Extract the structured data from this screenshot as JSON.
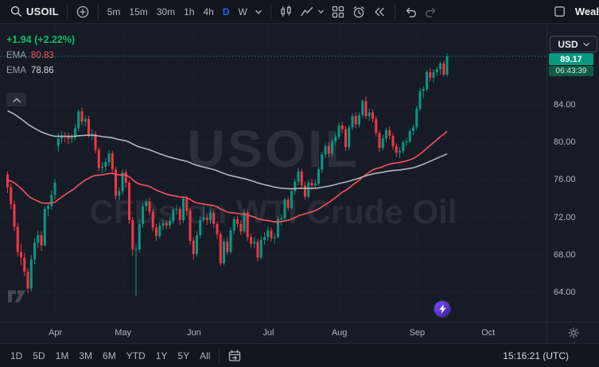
{
  "toolbar": {
    "symbol": "USOIL",
    "timeframes": [
      {
        "label": "5m",
        "active": false
      },
      {
        "label": "15m",
        "active": false
      },
      {
        "label": "30m",
        "active": false
      },
      {
        "label": "1h",
        "active": false
      },
      {
        "label": "4h",
        "active": false
      },
      {
        "label": "D",
        "active": true
      },
      {
        "label": "W",
        "active": false
      }
    ],
    "brand": "Weal"
  },
  "legend": {
    "change": "+1.94 (+2.22%)",
    "indicators": [
      {
        "label": "EMA",
        "value": "80.83",
        "color": "#f7525f"
      },
      {
        "label": "EMA",
        "value": "78.86",
        "color": "#d7dae0"
      }
    ]
  },
  "watermark": {
    "line1": "USOIL",
    "line2": "CFDs on WTI Crude Oil"
  },
  "price_axis": {
    "currency": "USD",
    "last_label": "89.17",
    "countdown": "06:43:39"
  },
  "bottom_bar": {
    "ranges": [
      "1D",
      "5D",
      "1M",
      "3M",
      "6M",
      "YTD",
      "1Y",
      "5Y",
      "All"
    ],
    "clock": "15:16:21 (UTC)"
  },
  "icons": {
    "search": "magnifier",
    "compare": "plus-circle",
    "timeframe_menu": "chevron-down",
    "chart_type": "candles",
    "indicators": "line-chart",
    "layout": "grid",
    "alert": "alarm-clock",
    "replay": "rewind",
    "undo": "arrow-undo",
    "redo": "arrow-redo",
    "fullscreen": "square",
    "collapse": "chevron-up",
    "goto_date": "calendar",
    "settings": "gear",
    "community": "lightning-circle",
    "logo": "tradingview"
  },
  "colors": {
    "background": "#161b26",
    "toolbar": "#12151e",
    "border": "#262b36",
    "up": "#089981",
    "down": "#f23645",
    "accent": "#2962ff",
    "change_text": "#0abd6e",
    "ema_fast": "#f7525f",
    "ema_slow": "#b2b5be",
    "badge_bg": "#089981",
    "countdown_bg": "#0f5b46",
    "axis_text": "#b2b5be"
  },
  "chart_data": {
    "type": "candlestick",
    "symbol": "USOIL",
    "title": "CFDs on WTI Crude Oil",
    "interval": "D",
    "last_price": 89.17,
    "change": 1.94,
    "change_pct": 2.22,
    "price_ticks": [
      84,
      80,
      76,
      72,
      68,
      64
    ],
    "y_range": [
      62.5,
      92.5
    ],
    "months": [
      {
        "label": "Apr",
        "b": 15
      },
      {
        "label": "May",
        "b": 35
      },
      {
        "label": "Jun",
        "b": 56
      },
      {
        "label": "Jul",
        "b": 78
      },
      {
        "label": "Aug",
        "b": 99
      },
      {
        "label": "Sep",
        "b": 122
      },
      {
        "label": "Oct",
        "b": 143
      }
    ],
    "emas": [
      {
        "name": "EMA",
        "period": 50,
        "seed": 76.0,
        "value": 80.83,
        "color": "#f7525f"
      },
      {
        "name": "EMA",
        "period": 120,
        "seed": 83.5,
        "value": 78.86,
        "color": "#b2b5be"
      }
    ],
    "candles": [
      [
        76.6,
        76.9,
        74.6,
        75.2
      ],
      [
        75.2,
        75.6,
        72.9,
        73.4
      ],
      [
        73.4,
        73.8,
        70.5,
        71.0
      ],
      [
        71.0,
        71.4,
        67.8,
        68.3
      ],
      [
        68.3,
        69.2,
        66.9,
        67.7
      ],
      [
        67.7,
        68.2,
        65.7,
        66.2
      ],
      [
        66.2,
        66.6,
        63.9,
        64.4
      ],
      [
        64.4,
        68.0,
        64.1,
        67.5
      ],
      [
        67.5,
        69.8,
        67.0,
        69.3
      ],
      [
        69.3,
        70.6,
        68.7,
        70.1
      ],
      [
        70.1,
        70.5,
        68.4,
        69.0
      ],
      [
        69.0,
        73.2,
        68.9,
        72.9
      ],
      [
        72.9,
        73.6,
        72.1,
        73.2
      ],
      [
        73.2,
        74.9,
        72.8,
        74.4
      ],
      [
        74.4,
        76.1,
        73.9,
        75.7
      ],
      [
        79.6,
        81.0,
        79.0,
        80.4
      ],
      [
        80.4,
        81.2,
        79.9,
        80.7
      ],
      [
        80.7,
        81.1,
        80.0,
        80.6
      ],
      [
        80.6,
        81.0,
        79.8,
        80.4
      ],
      [
        80.4,
        80.9,
        79.9,
        80.5
      ],
      [
        80.5,
        81.9,
        80.2,
        81.5
      ],
      [
        81.5,
        83.5,
        81.2,
        83.3
      ],
      [
        83.3,
        83.7,
        81.8,
        82.2
      ],
      [
        82.2,
        82.9,
        81.7,
        82.5
      ],
      [
        82.5,
        82.8,
        80.5,
        80.8
      ],
      [
        80.8,
        81.4,
        80.3,
        80.9
      ],
      [
        80.9,
        81.2,
        78.8,
        79.2
      ],
      [
        79.2,
        79.5,
        76.9,
        77.3
      ],
      [
        77.3,
        77.9,
        76.7,
        77.4
      ],
      [
        77.4,
        78.3,
        76.9,
        77.9
      ],
      [
        77.9,
        79.2,
        77.5,
        78.8
      ],
      [
        78.8,
        79.1,
        76.7,
        77.1
      ],
      [
        77.1,
        77.4,
        73.9,
        74.3
      ],
      [
        74.3,
        75.2,
        73.8,
        74.8
      ],
      [
        74.8,
        77.1,
        74.5,
        76.8
      ],
      [
        76.8,
        77.1,
        75.2,
        75.7
      ],
      [
        75.7,
        76.0,
        71.3,
        71.7
      ],
      [
        71.7,
        72.0,
        67.9,
        68.6
      ],
      [
        68.6,
        69.1,
        63.6,
        68.6
      ],
      [
        68.6,
        71.8,
        68.2,
        71.3
      ],
      [
        71.3,
        73.5,
        70.9,
        73.2
      ],
      [
        73.2,
        74.0,
        72.7,
        73.7
      ],
      [
        73.7,
        74.1,
        72.2,
        72.6
      ],
      [
        72.6,
        72.9,
        70.5,
        70.9
      ],
      [
        70.9,
        71.3,
        69.5,
        70.0
      ],
      [
        70.0,
        71.5,
        69.7,
        71.1
      ],
      [
        71.1,
        71.8,
        70.6,
        71.4
      ],
      [
        71.4,
        71.7,
        70.7,
        71.1
      ],
      [
        71.1,
        72.0,
        70.8,
        71.6
      ],
      [
        71.6,
        73.1,
        71.3,
        72.8
      ],
      [
        72.8,
        73.3,
        72.3,
        72.9
      ],
      [
        72.9,
        73.2,
        71.2,
        71.7
      ],
      [
        71.7,
        74.2,
        71.4,
        74.0
      ],
      [
        74.0,
        74.3,
        72.2,
        72.7
      ],
      [
        72.7,
        73.0,
        69.1,
        69.5
      ],
      [
        69.5,
        69.9,
        67.5,
        68.1
      ],
      [
        68.1,
        70.5,
        67.8,
        70.1
      ],
      [
        70.1,
        72.1,
        69.8,
        71.7
      ],
      [
        71.7,
        73.3,
        71.5,
        72.0
      ],
      [
        72.0,
        72.4,
        71.2,
        71.7
      ],
      [
        71.7,
        72.9,
        71.3,
        72.5
      ],
      [
        72.5,
        72.8,
        70.9,
        71.3
      ],
      [
        71.3,
        71.6,
        69.7,
        70.2
      ],
      [
        70.2,
        70.5,
        66.8,
        67.1
      ],
      [
        67.1,
        69.8,
        66.9,
        69.4
      ],
      [
        69.4,
        69.9,
        68.0,
        68.3
      ],
      [
        68.3,
        70.9,
        68.1,
        70.6
      ],
      [
        70.6,
        72.1,
        70.2,
        71.8
      ],
      [
        71.8,
        72.2,
        70.9,
        71.3
      ],
      [
        71.3,
        71.7,
        70.1,
        70.5
      ],
      [
        70.5,
        72.9,
        70.3,
        72.5
      ],
      [
        72.5,
        72.8,
        69.5,
        69.9
      ],
      [
        69.9,
        70.3,
        68.8,
        69.2
      ],
      [
        69.2,
        69.9,
        68.7,
        69.4
      ],
      [
        69.4,
        69.7,
        67.3,
        67.7
      ],
      [
        67.7,
        70.0,
        67.5,
        69.6
      ],
      [
        69.6,
        70.4,
        69.1,
        69.9
      ],
      [
        69.9,
        71.0,
        69.5,
        70.6
      ],
      [
        70.6,
        70.9,
        69.4,
        69.8
      ],
      [
        69.8,
        70.3,
        69.2,
        69.9
      ],
      [
        69.9,
        72.1,
        69.7,
        71.8
      ],
      [
        71.8,
        72.3,
        71.1,
        71.9
      ],
      [
        71.9,
        74.1,
        71.5,
        73.9
      ],
      [
        73.9,
        74.2,
        72.7,
        73.0
      ],
      [
        73.0,
        75.1,
        72.8,
        74.8
      ],
      [
        74.8,
        76.1,
        74.4,
        75.8
      ],
      [
        75.8,
        77.3,
        75.4,
        76.9
      ],
      [
        76.9,
        77.2,
        75.0,
        75.4
      ],
      [
        75.4,
        75.8,
        73.9,
        74.2
      ],
      [
        74.2,
        76.0,
        74.0,
        75.7
      ],
      [
        75.7,
        76.1,
        74.9,
        75.4
      ],
      [
        75.4,
        76.0,
        75.0,
        75.6
      ],
      [
        75.6,
        77.4,
        75.3,
        77.1
      ],
      [
        77.1,
        79.0,
        76.8,
        78.7
      ],
      [
        78.7,
        79.9,
        78.3,
        79.6
      ],
      [
        79.6,
        80.0,
        78.4,
        78.8
      ],
      [
        78.8,
        80.4,
        78.5,
        80.1
      ],
      [
        80.1,
        81.0,
        79.7,
        80.6
      ],
      [
        80.6,
        82.1,
        80.3,
        81.8
      ],
      [
        81.8,
        82.2,
        80.9,
        81.4
      ],
      [
        81.4,
        81.7,
        79.1,
        79.5
      ],
      [
        79.5,
        81.9,
        79.2,
        81.6
      ],
      [
        81.6,
        83.1,
        81.3,
        82.8
      ],
      [
        82.8,
        83.2,
        81.5,
        81.9
      ],
      [
        81.9,
        83.2,
        81.6,
        82.9
      ],
      [
        82.9,
        84.6,
        82.6,
        84.4
      ],
      [
        84.4,
        84.9,
        82.5,
        82.8
      ],
      [
        82.8,
        83.6,
        82.3,
        83.2
      ],
      [
        83.2,
        83.5,
        82.1,
        82.5
      ],
      [
        82.5,
        82.8,
        80.6,
        81.0
      ],
      [
        81.0,
        81.3,
        79.0,
        79.4
      ],
      [
        79.4,
        80.8,
        79.1,
        80.4
      ],
      [
        80.4,
        81.6,
        80.0,
        81.3
      ],
      [
        81.3,
        81.7,
        80.3,
        80.7
      ],
      [
        80.7,
        81.0,
        79.2,
        79.6
      ],
      [
        79.6,
        79.9,
        78.4,
        78.9
      ],
      [
        78.9,
        79.5,
        78.3,
        79.1
      ],
      [
        79.1,
        80.3,
        78.8,
        80.0
      ],
      [
        80.0,
        80.5,
        79.6,
        80.1
      ],
      [
        80.1,
        81.5,
        79.9,
        81.2
      ],
      [
        81.2,
        81.9,
        80.8,
        81.6
      ],
      [
        81.6,
        83.9,
        81.3,
        83.6
      ],
      [
        83.6,
        85.8,
        83.3,
        85.5
      ],
      [
        85.5,
        86.0,
        84.7,
        85.7
      ],
      [
        85.7,
        87.7,
        85.4,
        87.5
      ],
      [
        87.5,
        87.9,
        86.5,
        86.9
      ],
      [
        86.9,
        87.8,
        86.4,
        87.5
      ],
      [
        87.5,
        88.1,
        87.1,
        87.8
      ],
      [
        87.8,
        88.6,
        87.2,
        88.4
      ],
      [
        88.4,
        88.7,
        87.0,
        87.23
      ],
      [
        87.23,
        89.5,
        87.0,
        89.17
      ]
    ]
  }
}
